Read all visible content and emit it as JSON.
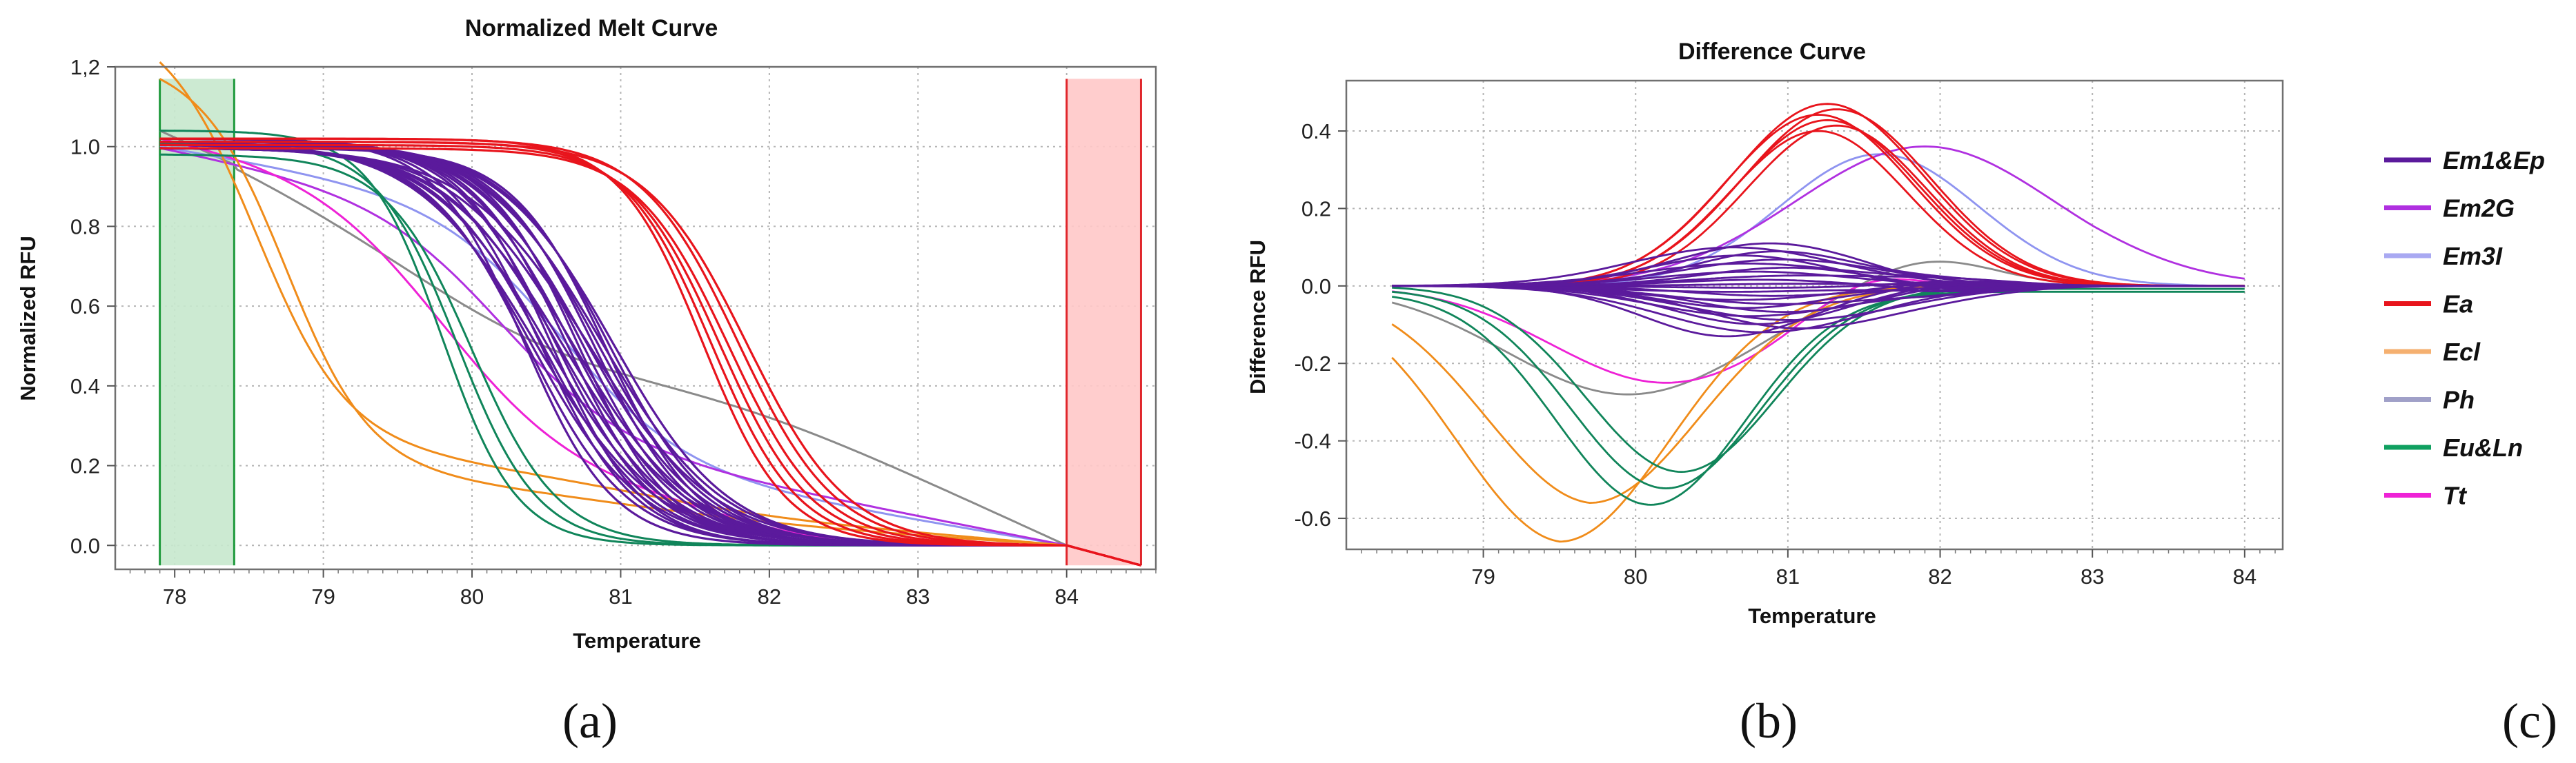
{
  "chart_data": [
    {
      "id": "a",
      "type": "line",
      "title": "Normalized Melt Curve",
      "xlabel": "Temperature",
      "ylabel": "Normalized RFU",
      "xlim": [
        77.6,
        84.6
      ],
      "ylim": [
        -0.06,
        1.2
      ],
      "xticks": [
        78,
        79,
        80,
        81,
        82,
        83,
        84
      ],
      "xtick_labels": [
        "78",
        "79",
        "80",
        "81",
        "82",
        "83",
        "84"
      ],
      "yticks": [
        0.0,
        0.2,
        0.4,
        0.6,
        0.8,
        1.0,
        1.2
      ],
      "ytick_labels": [
        "0.0",
        "0.2",
        "0.4",
        "0.6",
        "0.8",
        "1.0",
        "1,2"
      ],
      "regions": [
        {
          "name": "pre-melt region",
          "x_start": 77.9,
          "x_end": 78.4,
          "y_start": -0.05,
          "y_end": 1.17,
          "fill": "#c6e8cd",
          "stroke": "#1f9a3c"
        },
        {
          "name": "post-melt region",
          "x_start": 84.0,
          "x_end": 84.5,
          "y_start": -0.05,
          "y_end": 1.17,
          "fill": "#ffc8c8",
          "stroke": "#e0262b"
        }
      ],
      "series": [
        {
          "name": "Em1&Ep",
          "color": "#5b1a9c",
          "count": 24,
          "tm_range": [
            80.35,
            80.95
          ],
          "width_range": [
            0.3,
            0.42
          ],
          "x_start": 77.9,
          "x_end": 84.0
        },
        {
          "name": "Ea",
          "color": "#e8141c",
          "count": 6,
          "tm_range": [
            81.55,
            81.85
          ],
          "width_range": [
            0.28,
            0.34
          ],
          "x_start": 77.9,
          "x_end": 84.5
        },
        {
          "name": "Eu&Ln",
          "color": "#10855a",
          "count": 3,
          "tm_range": [
            79.8,
            80.0
          ],
          "width_range": [
            0.25,
            0.29
          ],
          "x_start": 77.9,
          "x_end": 84.0
        },
        {
          "name": "Ecl",
          "color": "#f08c1a",
          "count": 2,
          "x_start": 77.9,
          "x_end": 84.0
        },
        {
          "name": "Em2G",
          "color": "#b030e0",
          "count": 1,
          "x_start": 77.9,
          "x_end": 84.5
        },
        {
          "name": "Em3I",
          "color": "#8f94f0",
          "count": 1,
          "x_start": 77.9,
          "x_end": 84.0
        },
        {
          "name": "Ph",
          "color": "#8a8a8a",
          "count": 1,
          "x_start": 77.9,
          "x_end": 84.0
        },
        {
          "name": "Tt",
          "color": "#ee22d6",
          "count": 1,
          "x_start": 77.9,
          "x_end": 84.0
        }
      ]
    },
    {
      "id": "b",
      "type": "line",
      "title": "Difference Curve",
      "xlabel": "Temperature",
      "ylabel": "Difference RFU",
      "xlim": [
        78.1,
        84.25
      ],
      "ylim": [
        -0.68,
        0.53
      ],
      "xticks": [
        79,
        80,
        81,
        82,
        83,
        84
      ],
      "xtick_labels": [
        "79",
        "80",
        "81",
        "82",
        "83",
        "84"
      ],
      "yticks": [
        -0.6,
        -0.4,
        -0.2,
        0.0,
        0.2,
        0.4
      ],
      "ytick_labels": [
        "-0.6",
        "-0.4",
        "-0.2",
        "0.0",
        "0.2",
        "0.4"
      ],
      "series": [
        {
          "name": "Em1&Ep",
          "color": "#5b1a9c",
          "count": 24,
          "peak_range": [
            -0.13,
            0.11
          ],
          "center_range": [
            80.6,
            81.1
          ],
          "x_start": 78.4,
          "x_end": 84.0
        },
        {
          "name": "Ea",
          "color": "#e8141c",
          "count": 6,
          "peak_range": [
            0.4,
            0.47
          ],
          "center_range": [
            81.2,
            81.35
          ],
          "x_start": 78.4,
          "x_end": 84.0
        },
        {
          "name": "Em2G",
          "color": "#b030e0",
          "count": 1,
          "peak": 0.36,
          "center": 81.9,
          "x_start": 78.4,
          "x_end": 84.0
        },
        {
          "name": "Em3I",
          "color": "#8f94f0",
          "count": 1,
          "peak": 0.34,
          "center": 81.6,
          "x_start": 78.4,
          "x_end": 84.0
        },
        {
          "name": "Eu&Ln",
          "color": "#10855a",
          "count": 3,
          "peak_range": [
            -0.55,
            -0.48
          ],
          "center_range": [
            80.1,
            80.3
          ],
          "x_start": 78.4,
          "x_end": 84.0
        },
        {
          "name": "Ecl",
          "color": "#f08c1a",
          "count": 2,
          "peak_range": [
            -0.66,
            -0.56
          ],
          "center_range": [
            79.5,
            79.7
          ],
          "x_start": 78.4,
          "x_end": 84.0
        },
        {
          "name": "Ph",
          "color": "#8a8a8a",
          "count": 1,
          "x_start": 78.4,
          "x_end": 84.0
        },
        {
          "name": "Tt",
          "color": "#ee22d6",
          "count": 1,
          "peak": -0.25,
          "center": 80.2,
          "x_start": 78.4,
          "x_end": 84.0
        }
      ]
    }
  ],
  "legend": {
    "items": [
      {
        "label": "Em1&Ep",
        "color": "#5b1a9c"
      },
      {
        "label": "Em2G",
        "color": "#b030e0"
      },
      {
        "label": "Em3I",
        "color": "#a9a9f2"
      },
      {
        "label": "Ea",
        "color": "#e8141c"
      },
      {
        "label": "Ecl",
        "color": "#f5b070"
      },
      {
        "label": "Ph",
        "color": "#a0a0c8"
      },
      {
        "label": "Eu&Ln",
        "color": "#10a060"
      },
      {
        "label": "Tt",
        "color": "#ee22d6"
      }
    ]
  },
  "panel_labels": {
    "a": "(a)",
    "b": "(b)",
    "c": "(c)"
  }
}
